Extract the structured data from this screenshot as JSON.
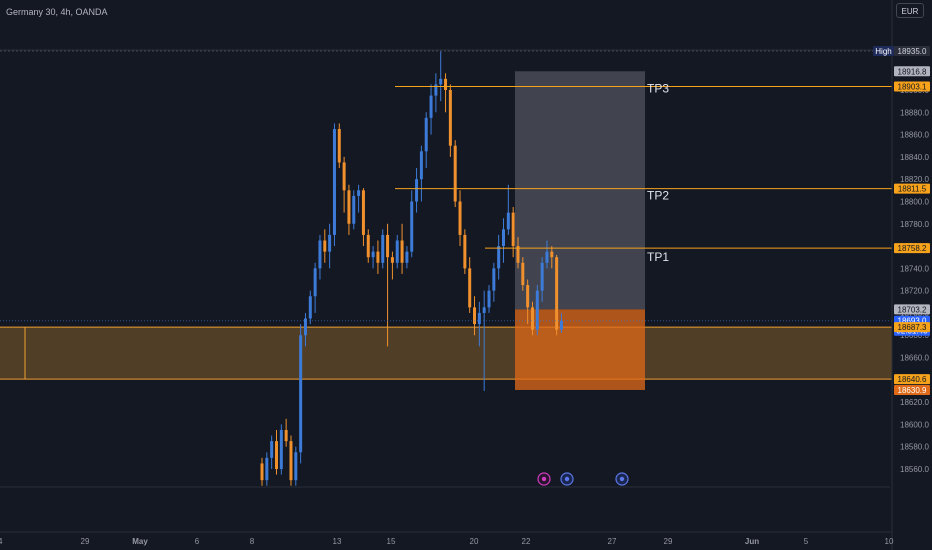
{
  "header": {
    "title": "Germany 30, 4h, OANDA",
    "currency": "EUR"
  },
  "chart_data": {
    "type": "candlestick",
    "title": "Germany 30, 4h, OANDA",
    "ylim": [
      18540,
      18950
    ],
    "y_ticks": [
      18560,
      18580,
      18600,
      18620,
      18640,
      18660,
      18680,
      18700,
      18720,
      18740,
      18760,
      18780,
      18800,
      18820,
      18840,
      18860,
      18880,
      18900
    ],
    "x_ticks": [
      "24",
      "29",
      "May",
      "6",
      "8",
      "13",
      "15",
      "20",
      "22",
      "27",
      "29",
      "Jun",
      "5",
      "10"
    ],
    "price_labels": [
      {
        "name": "High",
        "value": "18935.0"
      },
      {
        "name": "level",
        "value": "18916.8"
      },
      {
        "name": "tp3",
        "value": "18903.1"
      },
      {
        "name": "tp2",
        "value": "18811.5"
      },
      {
        "name": "tp1",
        "value": "18758.2"
      },
      {
        "name": "level",
        "value": "18703.2"
      },
      {
        "name": "last",
        "value": "18693.0"
      },
      {
        "name": "countdown",
        "value": "02:31:43"
      },
      {
        "name": "zone-top",
        "value": "18687.3"
      },
      {
        "name": "zone-bottom",
        "value": "18640.6"
      },
      {
        "name": "stop",
        "value": "18630.9"
      }
    ],
    "annotations": [
      "TP3",
      "TP2",
      "TP1"
    ],
    "zone": {
      "top": 18687.3,
      "bottom": 18640.6
    },
    "position": {
      "entry": 18703.2,
      "stop": 18630.9,
      "target": 18916.8
    },
    "colors": {
      "up": "#3d7bd9",
      "down": "#f0912d",
      "zone": "#f0a030",
      "stop": "#e06a18",
      "label_bg": "#f7a21b"
    },
    "candles": [
      [
        18565,
        18570,
        18545,
        18550
      ],
      [
        18550,
        18575,
        18545,
        18570
      ],
      [
        18570,
        18590,
        18560,
        18585
      ],
      [
        18585,
        18595,
        18555,
        18560
      ],
      [
        18560,
        18600,
        18555,
        18595
      ],
      [
        18595,
        18605,
        18580,
        18585
      ],
      [
        18585,
        18590,
        18545,
        18550
      ],
      [
        18550,
        18580,
        18545,
        18575
      ],
      [
        18575,
        18690,
        18565,
        18680
      ],
      [
        18680,
        18700,
        18670,
        18695
      ],
      [
        18695,
        18720,
        18690,
        18715
      ],
      [
        18715,
        18745,
        18700,
        18740
      ],
      [
        18740,
        18770,
        18730,
        18765
      ],
      [
        18765,
        18775,
        18745,
        18755
      ],
      [
        18755,
        18780,
        18740,
        18770
      ],
      [
        18770,
        18870,
        18760,
        18865
      ],
      [
        18865,
        18870,
        18830,
        18835
      ],
      [
        18835,
        18840,
        18790,
        18810
      ],
      [
        18810,
        18815,
        18770,
        18780
      ],
      [
        18780,
        18810,
        18775,
        18805
      ],
      [
        18805,
        18815,
        18790,
        18810
      ],
      [
        18810,
        18812,
        18760,
        18770
      ],
      [
        18770,
        18775,
        18745,
        18750
      ],
      [
        18750,
        18760,
        18740,
        18755
      ],
      [
        18755,
        18765,
        18735,
        18745
      ],
      [
        18745,
        18775,
        18740,
        18770
      ],
      [
        18770,
        18780,
        18670,
        18750
      ],
      [
        18750,
        18755,
        18730,
        18745
      ],
      [
        18745,
        18770,
        18740,
        18765
      ],
      [
        18765,
        18780,
        18735,
        18745
      ],
      [
        18745,
        18760,
        18740,
        18755
      ],
      [
        18755,
        18810,
        18750,
        18800
      ],
      [
        18800,
        18830,
        18790,
        18820
      ],
      [
        18820,
        18850,
        18800,
        18845
      ],
      [
        18845,
        18880,
        18830,
        18875
      ],
      [
        18875,
        18905,
        18860,
        18895
      ],
      [
        18895,
        18915,
        18880,
        18905
      ],
      [
        18905,
        18935,
        18890,
        18910
      ],
      [
        18910,
        18915,
        18880,
        18900
      ],
      [
        18900,
        18905,
        18840,
        18850
      ],
      [
        18850,
        18855,
        18795,
        18800
      ],
      [
        18800,
        18810,
        18760,
        18770
      ],
      [
        18770,
        18775,
        18735,
        18740
      ],
      [
        18740,
        18750,
        18700,
        18705
      ],
      [
        18705,
        18715,
        18680,
        18690
      ],
      [
        18690,
        18710,
        18670,
        18700
      ],
      [
        18700,
        18720,
        18630,
        18705
      ],
      [
        18705,
        18725,
        18700,
        18720
      ],
      [
        18720,
        18745,
        18710,
        18740
      ],
      [
        18740,
        18770,
        18730,
        18760
      ],
      [
        18760,
        18785,
        18745,
        18775
      ],
      [
        18775,
        18815,
        18770,
        18790
      ],
      [
        18790,
        18795,
        18750,
        18760
      ],
      [
        18760,
        18768,
        18740,
        18745
      ],
      [
        18745,
        18750,
        18720,
        18725
      ],
      [
        18725,
        18730,
        18690,
        18705
      ],
      [
        18705,
        18710,
        18680,
        18685
      ],
      [
        18685,
        18725,
        18680,
        18720
      ],
      [
        18720,
        18750,
        18710,
        18745
      ],
      [
        18745,
        18765,
        18740,
        18755
      ],
      [
        18755,
        18760,
        18740,
        18750
      ],
      [
        18750,
        18752,
        18680,
        18685
      ],
      [
        18685,
        18700,
        18682,
        18693
      ]
    ]
  },
  "events": [
    "lightning-event-icon",
    "calendar-event-icon",
    "calendar-event-icon"
  ]
}
